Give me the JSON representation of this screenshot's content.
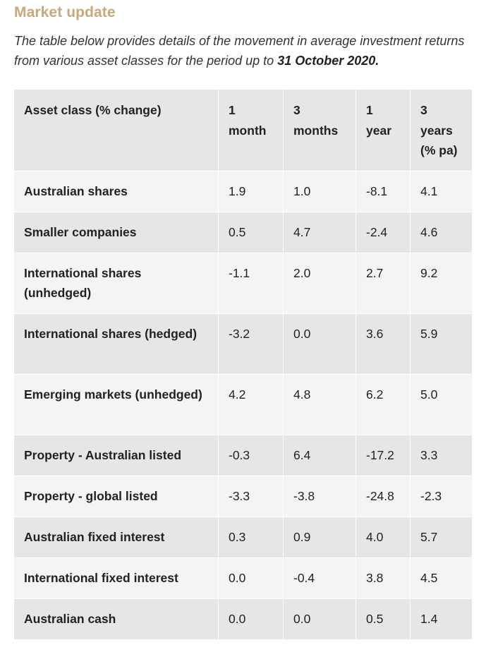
{
  "title": "Market update",
  "intro": {
    "text": "The table below provides details of the movement in average investment returns from various asset classes for the period up to ",
    "date": "31 October 2020."
  },
  "table": {
    "headers": {
      "asset": "Asset class (% change)",
      "m1": "1 month",
      "m3": "3 months",
      "y1": "1 year",
      "y3": "3 years (% pa)"
    },
    "rows": [
      {
        "asset": "Australian shares",
        "m1": "1.9",
        "m3": "1.0",
        "y1": "-8.1",
        "y3": "4.1"
      },
      {
        "asset": "Smaller companies",
        "m1": "0.5",
        "m3": "4.7",
        "y1": "-2.4",
        "y3": "4.6"
      },
      {
        "asset": "International shares (unhedged)",
        "m1": "-1.1",
        "m3": "2.0",
        "y1": "2.7",
        "y3": "9.2"
      },
      {
        "asset": "International shares (hedged)",
        "m1": "-3.2",
        "m3": "0.0",
        "y1": "3.6",
        "y3": "5.9"
      },
      {
        "asset": "Emerging markets (unhedged)",
        "m1": "4.2",
        "m3": "4.8",
        "y1": "6.2",
        "y3": "5.0"
      },
      {
        "asset": "Property - Australian listed",
        "m1": "-0.3",
        "m3": "6.4",
        "y1": "-17.2",
        "y3": "3.3"
      },
      {
        "asset": "Property - global listed",
        "m1": "-3.3",
        "m3": "-3.8",
        "y1": "-24.8",
        "y3": "-2.3"
      },
      {
        "asset": "Australian fixed interest",
        "m1": "0.3",
        "m3": "0.9",
        "y1": "4.0",
        "y3": "5.7"
      },
      {
        "asset": "International fixed interest",
        "m1": "0.0",
        "m3": "-0.4",
        "y1": "3.8",
        "y3": "4.5"
      },
      {
        "asset": "Australian cash",
        "m1": "0.0",
        "m3": "0.0",
        "y1": "0.5",
        "y3": "1.4"
      }
    ]
  },
  "colors": {
    "heading": "#c9a87a",
    "row_light": "#f4f4f4",
    "row_dark": "#e6e6e6"
  }
}
